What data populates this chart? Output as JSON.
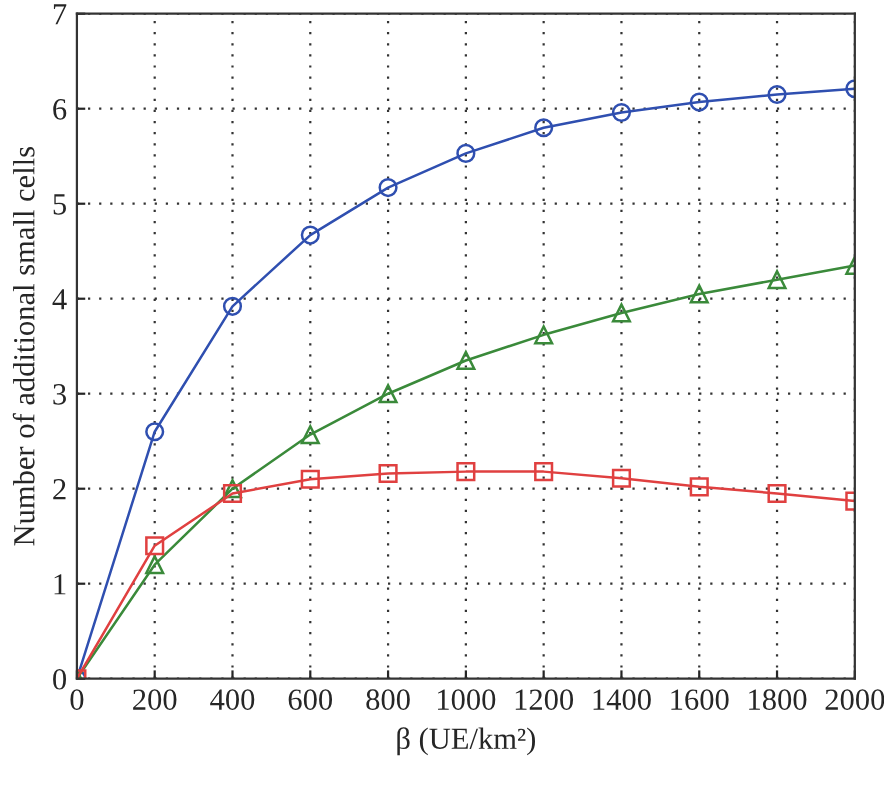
{
  "chart_data": {
    "type": "line",
    "xlabel": "β (UE/km²)",
    "ylabel": "Number of additional small cells",
    "x": [
      0,
      200,
      400,
      600,
      800,
      1000,
      1200,
      1400,
      1600,
      1800,
      2000
    ],
    "series": [
      {
        "color": "#2f4fb0",
        "marker": "circle",
        "values": [
          0,
          2.6,
          3.92,
          4.67,
          5.17,
          5.53,
          5.8,
          5.96,
          6.07,
          6.15,
          6.21
        ]
      },
      {
        "color": "#3a8a3a",
        "marker": "triangle",
        "values": [
          0,
          1.2,
          2.0,
          2.57,
          3.0,
          3.35,
          3.62,
          3.85,
          4.05,
          4.2,
          4.35
        ]
      },
      {
        "color": "#e04040",
        "marker": "square",
        "values": [
          0,
          1.4,
          1.95,
          2.1,
          2.16,
          2.18,
          2.18,
          2.11,
          2.02,
          1.95,
          1.87
        ]
      }
    ],
    "xlim": [
      0,
      2000
    ],
    "xticks": [
      0,
      200,
      400,
      600,
      800,
      1000,
      1200,
      1400,
      1600,
      1800,
      2000
    ],
    "ylim": [
      0,
      7
    ],
    "yticks": [
      0,
      1,
      2,
      3,
      4,
      5,
      6,
      7
    ],
    "grid": true,
    "line_style": "solid",
    "legend": false
  }
}
